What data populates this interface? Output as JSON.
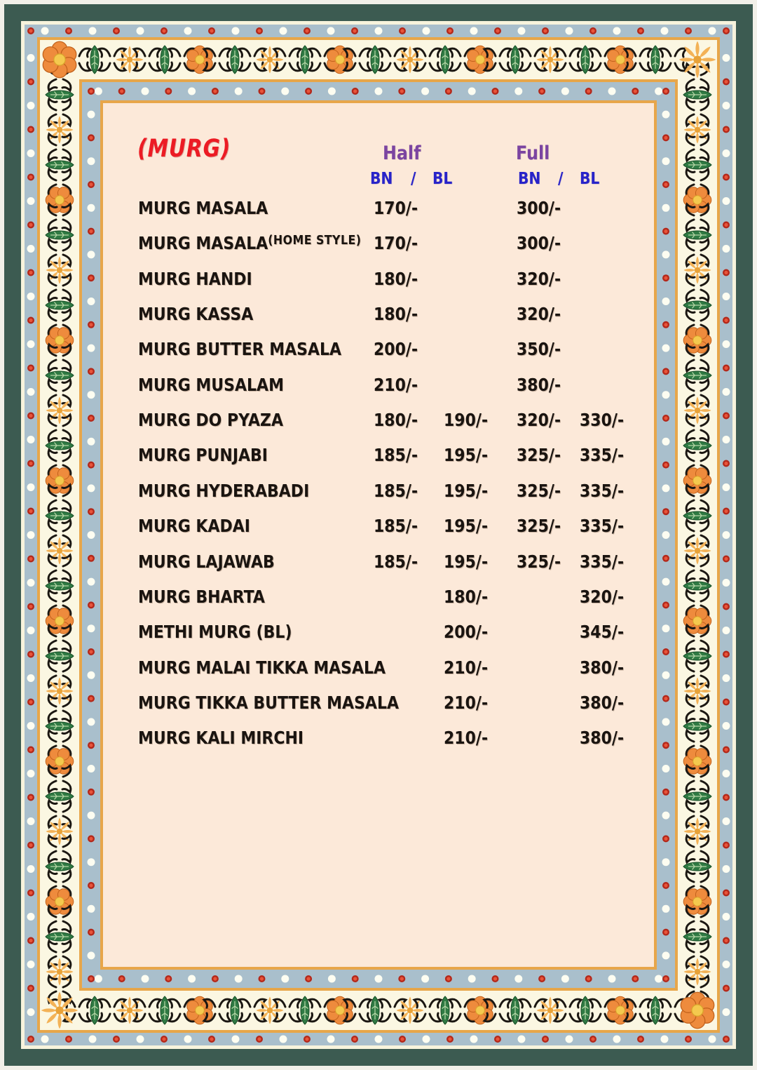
{
  "header": {
    "title": "(MURG)",
    "half": "Half",
    "full": "Full",
    "bn": "BN",
    "bl": "BL",
    "slash": "/"
  },
  "menu": {
    "items": [
      {
        "name": "MURG MASALA",
        "suffix": "",
        "half_bn": "170/-",
        "half_bl": "",
        "full_bn": "300/-",
        "full_bl": ""
      },
      {
        "name": "MURG MASALA",
        "suffix": "(HOME STYLE)",
        "half_bn": "170/-",
        "half_bl": "",
        "full_bn": "300/-",
        "full_bl": ""
      },
      {
        "name": "MURG HANDI",
        "suffix": "",
        "half_bn": "180/-",
        "half_bl": "",
        "full_bn": "320/-",
        "full_bl": ""
      },
      {
        "name": "MURG KASSA",
        "suffix": "",
        "half_bn": "180/-",
        "half_bl": "",
        "full_bn": "320/-",
        "full_bl": ""
      },
      {
        "name": "MURG BUTTER MASALA",
        "suffix": "",
        "half_bn": "200/-",
        "half_bl": "",
        "full_bn": "350/-",
        "full_bl": ""
      },
      {
        "name": "MURG MUSALAM",
        "suffix": "",
        "half_bn": "210/-",
        "half_bl": "",
        "full_bn": "380/-",
        "full_bl": ""
      },
      {
        "name": "MURG DO PYAZA",
        "suffix": "",
        "half_bn": "180/-",
        "half_bl": "190/-",
        "full_bn": "320/-",
        "full_bl": "330/-"
      },
      {
        "name": "MURG PUNJABI",
        "suffix": "",
        "half_bn": "185/-",
        "half_bl": "195/-",
        "full_bn": "325/-",
        "full_bl": "335/-"
      },
      {
        "name": "MURG HYDERABADI",
        "suffix": "",
        "half_bn": "185/-",
        "half_bl": "195/-",
        "full_bn": "325/-",
        "full_bl": "335/-"
      },
      {
        "name": "MURG KADAI",
        "suffix": "",
        "half_bn": "185/-",
        "half_bl": "195/-",
        "full_bn": "325/-",
        "full_bl": "335/-"
      },
      {
        "name": "MURG LAJAWAB",
        "suffix": "",
        "half_bn": "185/-",
        "half_bl": "195/-",
        "full_bn": "325/-",
        "full_bl": "335/-"
      },
      {
        "name": "MURG BHARTA",
        "suffix": "",
        "half_bn": "",
        "half_bl": "180/-",
        "full_bn": "",
        "full_bl": "320/-"
      },
      {
        "name": "METHI MURG (BL)",
        "suffix": "",
        "half_bn": "",
        "half_bl": "200/-",
        "full_bn": "",
        "full_bl": "345/-"
      },
      {
        "name": "MURG MALAI TIKKA MASALA",
        "suffix": "",
        "half_bn": "",
        "half_bl": "210/-",
        "full_bn": "",
        "full_bl": "380/-"
      },
      {
        "name": "MURG TIKKA BUTTER MASALA",
        "suffix": "",
        "half_bn": "",
        "half_bl": "210/-",
        "full_bn": "",
        "full_bl": "380/-"
      },
      {
        "name": "MURG KALI MIRCHI",
        "suffix": "",
        "half_bn": "",
        "half_bl": "210/-",
        "full_bn": "",
        "full_bl": "380/-"
      }
    ]
  },
  "colors": {
    "title_red": "#ec1b24",
    "header_purple": "#7b44a1",
    "header_blue": "#2823c9",
    "text_black": "#1a1410",
    "page_edge": "#f2f0e9",
    "frame_teal": "#3c5b51",
    "line_cream": "#f7f3dc",
    "band_bluegray": "#a9bfcc",
    "line_orange": "#e7a64a",
    "band_cream": "#fbf7e2",
    "content_peach": "#fce9d9",
    "dot_white": "#fdfdf1",
    "dot_red_dark": "#b3281a",
    "dot_red_light": "#e8543a",
    "flower_orange": "#ee8b3d",
    "flower_orange_edge": "#c2621c",
    "flower_center_yellow": "#f4c94e",
    "flower_yellow": "#f3b257",
    "flower_yellow_center": "#e8a238",
    "leaf_green": "#2f7a43",
    "leaf_edge": "#174f28",
    "leaf_vein": "#b8d8a8",
    "swirl_black": "#1b1712"
  }
}
